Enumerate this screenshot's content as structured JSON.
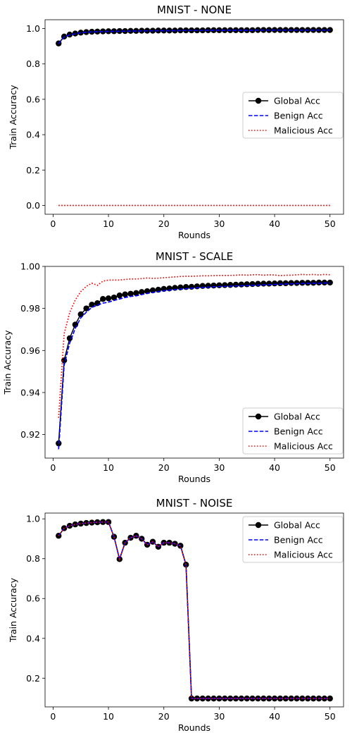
{
  "chart_data": [
    {
      "type": "line",
      "title": "MNIST - NONE",
      "xlabel": "Rounds",
      "ylabel": "Train Accuracy",
      "xlim": [
        -1.45,
        52.45
      ],
      "ylim": [
        -0.05,
        1.05
      ],
      "xticks": [
        0,
        10,
        20,
        30,
        40,
        50
      ],
      "yticks": [
        0.0,
        0.2,
        0.4,
        0.6,
        0.8,
        1.0
      ],
      "ytick_labels": [
        "0.0",
        "0.2",
        "0.4",
        "0.6",
        "0.8",
        "1.0"
      ],
      "legend": "center-right",
      "x": [
        1,
        2,
        3,
        4,
        5,
        6,
        7,
        8,
        9,
        10,
        11,
        12,
        13,
        14,
        15,
        16,
        17,
        18,
        19,
        20,
        21,
        22,
        23,
        24,
        25,
        26,
        27,
        28,
        29,
        30,
        31,
        32,
        33,
        34,
        35,
        36,
        37,
        38,
        39,
        40,
        41,
        42,
        43,
        44,
        45,
        46,
        47,
        48,
        49,
        50
      ],
      "series": [
        {
          "name": "Global Acc",
          "color": "#000000",
          "style": "solid-marker",
          "values": [
            0.916,
            0.955,
            0.966,
            0.972,
            0.977,
            0.98,
            0.982,
            0.983,
            0.984,
            0.985,
            0.985,
            0.986,
            0.986,
            0.987,
            0.987,
            0.988,
            0.988,
            0.988,
            0.989,
            0.989,
            0.989,
            0.989,
            0.99,
            0.99,
            0.99,
            0.99,
            0.99,
            0.991,
            0.991,
            0.991,
            0.991,
            0.991,
            0.991,
            0.991,
            0.991,
            0.991,
            0.992,
            0.992,
            0.992,
            0.992,
            0.992,
            0.992,
            0.992,
            0.992,
            0.992,
            0.992,
            0.992,
            0.992,
            0.992,
            0.992
          ]
        },
        {
          "name": "Benign Acc",
          "color": "#0000ff",
          "style": "dashed",
          "values": [
            0.914,
            0.953,
            0.964,
            0.97,
            0.976,
            0.979,
            0.981,
            0.982,
            0.983,
            0.984,
            0.984,
            0.985,
            0.985,
            0.986,
            0.986,
            0.987,
            0.987,
            0.987,
            0.988,
            0.988,
            0.988,
            0.988,
            0.989,
            0.989,
            0.989,
            0.989,
            0.989,
            0.99,
            0.99,
            0.99,
            0.99,
            0.99,
            0.99,
            0.99,
            0.99,
            0.99,
            0.991,
            0.991,
            0.991,
            0.991,
            0.991,
            0.991,
            0.991,
            0.991,
            0.991,
            0.991,
            0.991,
            0.991,
            0.991,
            0.991
          ]
        },
        {
          "name": "Malicious Acc",
          "color": "#ff0000",
          "style": "dotted",
          "values": [
            0,
            0,
            0,
            0,
            0,
            0,
            0,
            0,
            0,
            0,
            0,
            0,
            0,
            0,
            0,
            0,
            0,
            0,
            0,
            0,
            0,
            0,
            0,
            0,
            0,
            0,
            0,
            0,
            0,
            0,
            0,
            0,
            0,
            0,
            0,
            0,
            0,
            0,
            0,
            0,
            0,
            0,
            0,
            0,
            0,
            0,
            0,
            0,
            0,
            0
          ]
        }
      ]
    },
    {
      "type": "line",
      "title": "MNIST - SCALE",
      "xlabel": "Rounds",
      "ylabel": "Train Accuracy",
      "xlim": [
        -1.45,
        52.45
      ],
      "ylim": [
        0.9088,
        1.0
      ],
      "xticks": [
        0,
        10,
        20,
        30,
        40,
        50
      ],
      "yticks": [
        0.92,
        0.94,
        0.96,
        0.98,
        1.0
      ],
      "ytick_labels": [
        "0.92",
        "0.94",
        "0.96",
        "0.98",
        "1.00"
      ],
      "legend": "lower-right",
      "x": [
        1,
        2,
        3,
        4,
        5,
        6,
        7,
        8,
        9,
        10,
        11,
        12,
        13,
        14,
        15,
        16,
        17,
        18,
        19,
        20,
        21,
        22,
        23,
        24,
        25,
        26,
        27,
        28,
        29,
        30,
        31,
        32,
        33,
        34,
        35,
        36,
        37,
        38,
        39,
        40,
        41,
        42,
        43,
        44,
        45,
        46,
        47,
        48,
        49,
        50
      ],
      "series": [
        {
          "name": "Global Acc",
          "color": "#000000",
          "style": "solid-marker",
          "values": [
            0.9158,
            0.9553,
            0.9658,
            0.9723,
            0.9772,
            0.98,
            0.9818,
            0.9825,
            0.9845,
            0.9848,
            0.9852,
            0.9862,
            0.9867,
            0.987,
            0.9873,
            0.9878,
            0.9882,
            0.9886,
            0.9889,
            0.9893,
            0.9895,
            0.9898,
            0.99,
            0.9902,
            0.9903,
            0.9905,
            0.9907,
            0.9908,
            0.9909,
            0.991,
            0.9911,
            0.9912,
            0.9913,
            0.9914,
            0.9915,
            0.9916,
            0.9917,
            0.9918,
            0.9918,
            0.9919,
            0.992,
            0.992,
            0.9921,
            0.9921,
            0.9922,
            0.9922,
            0.9922,
            0.9923,
            0.9923,
            0.9923
          ]
        },
        {
          "name": "Benign Acc",
          "color": "#0000ff",
          "style": "dashed",
          "values": [
            0.913,
            0.953,
            0.9635,
            0.9705,
            0.9755,
            0.9782,
            0.9805,
            0.9815,
            0.9825,
            0.983,
            0.9838,
            0.9845,
            0.9852,
            0.9857,
            0.986,
            0.9866,
            0.9872,
            0.9876,
            0.988,
            0.9884,
            0.9887,
            0.989,
            0.9892,
            0.9894,
            0.9896,
            0.9898,
            0.99,
            0.9901,
            0.9903,
            0.9904,
            0.9905,
            0.9906,
            0.9907,
            0.9908,
            0.9909,
            0.991,
            0.9911,
            0.9912,
            0.9913,
            0.9914,
            0.9915,
            0.9916,
            0.9917,
            0.9918,
            0.9919,
            0.9919,
            0.992,
            0.992,
            0.9921,
            0.9921
          ]
        },
        {
          "name": "Malicious Acc",
          "color": "#ff0000",
          "style": "dotted",
          "values": [
            0.928,
            0.968,
            0.978,
            0.984,
            0.988,
            0.9905,
            0.992,
            0.991,
            0.993,
            0.9935,
            0.9935,
            0.9935,
            0.9938,
            0.994,
            0.994,
            0.9942,
            0.9945,
            0.9943,
            0.9944,
            0.9946,
            0.9948,
            0.995,
            0.9952,
            0.9953,
            0.9953,
            0.9954,
            0.9955,
            0.9955,
            0.9956,
            0.9957,
            0.9957,
            0.9957,
            0.9958,
            0.996,
            0.9958,
            0.996,
            0.9961,
            0.9958,
            0.996,
            0.9959,
            0.9956,
            0.9958,
            0.9958,
            0.996,
            0.9962,
            0.996,
            0.9962,
            0.9959,
            0.9962,
            0.996
          ]
        }
      ]
    },
    {
      "type": "line",
      "title": "MNIST - NOISE",
      "xlabel": "Rounds",
      "ylabel": "Train Accuracy",
      "xlim": [
        -1.45,
        52.45
      ],
      "ylim": [
        0.056,
        1.029
      ],
      "xticks": [
        0,
        10,
        20,
        30,
        40,
        50
      ],
      "yticks": [
        0.2,
        0.4,
        0.6,
        0.8,
        1.0
      ],
      "ytick_labels": [
        "0.2",
        "0.4",
        "0.6",
        "0.8",
        "1.0"
      ],
      "legend": "top-right",
      "x": [
        1,
        2,
        3,
        4,
        5,
        6,
        7,
        8,
        9,
        10,
        11,
        12,
        13,
        14,
        15,
        16,
        17,
        18,
        19,
        20,
        21,
        22,
        23,
        24,
        25,
        26,
        27,
        28,
        29,
        30,
        31,
        32,
        33,
        34,
        35,
        36,
        37,
        38,
        39,
        40,
        41,
        42,
        43,
        44,
        45,
        46,
        47,
        48,
        49,
        50
      ],
      "series": [
        {
          "name": "Global Acc",
          "color": "#000000",
          "style": "solid-marker",
          "values": [
            0.915,
            0.953,
            0.965,
            0.972,
            0.976,
            0.979,
            0.981,
            0.983,
            0.984,
            0.984,
            0.91,
            0.798,
            0.88,
            0.905,
            0.915,
            0.9,
            0.87,
            0.885,
            0.86,
            0.88,
            0.88,
            0.875,
            0.865,
            0.77,
            0.098,
            0.098,
            0.098,
            0.098,
            0.098,
            0.098,
            0.098,
            0.098,
            0.098,
            0.098,
            0.098,
            0.098,
            0.098,
            0.098,
            0.098,
            0.098,
            0.098,
            0.098,
            0.098,
            0.098,
            0.098,
            0.098,
            0.098,
            0.098,
            0.098,
            0.098
          ]
        },
        {
          "name": "Benign Acc",
          "color": "#0000ff",
          "style": "dashed",
          "values": [
            0.915,
            0.953,
            0.965,
            0.972,
            0.976,
            0.979,
            0.981,
            0.983,
            0.984,
            0.984,
            0.91,
            0.798,
            0.88,
            0.905,
            0.915,
            0.9,
            0.87,
            0.885,
            0.86,
            0.88,
            0.88,
            0.875,
            0.865,
            0.77,
            0.098,
            0.098,
            0.098,
            0.098,
            0.098,
            0.098,
            0.098,
            0.098,
            0.098,
            0.098,
            0.098,
            0.098,
            0.098,
            0.098,
            0.098,
            0.098,
            0.098,
            0.098,
            0.098,
            0.098,
            0.098,
            0.098,
            0.098,
            0.098,
            0.098,
            0.098
          ]
        },
        {
          "name": "Malicious Acc",
          "color": "#ff0000",
          "style": "dotted",
          "values": [
            0.915,
            0.953,
            0.965,
            0.972,
            0.976,
            0.979,
            0.981,
            0.983,
            0.984,
            0.984,
            0.91,
            0.798,
            0.88,
            0.905,
            0.915,
            0.9,
            0.87,
            0.885,
            0.86,
            0.88,
            0.88,
            0.875,
            0.865,
            0.77,
            0.098,
            0.098,
            0.098,
            0.098,
            0.098,
            0.098,
            0.098,
            0.098,
            0.098,
            0.098,
            0.098,
            0.098,
            0.098,
            0.098,
            0.098,
            0.098,
            0.098,
            0.098,
            0.098,
            0.098,
            0.098,
            0.098,
            0.098,
            0.098,
            0.098,
            0.098
          ]
        }
      ]
    }
  ]
}
